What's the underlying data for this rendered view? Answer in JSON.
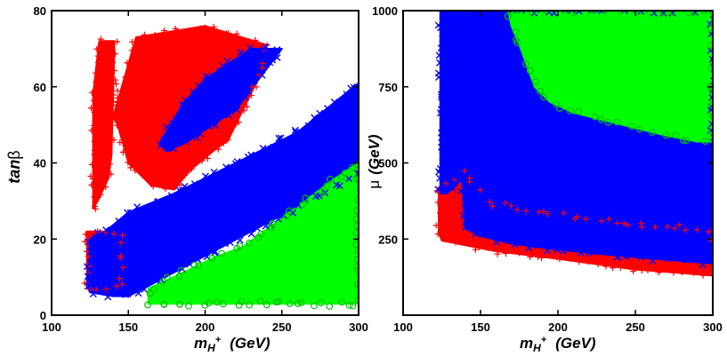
{
  "chart_data": [
    {
      "type": "scatter",
      "panel": "left",
      "xlabel_main": "m",
      "xlabel_sub": "H",
      "xlabel_sup": "+",
      "xlabel_units": "(GeV)",
      "ylabel_main": "tan",
      "ylabel_greek": "β",
      "xlim": [
        100,
        300
      ],
      "ylim": [
        0,
        80
      ],
      "xticks": [
        100,
        150,
        200,
        250,
        300
      ],
      "yticks": [
        0,
        20,
        40,
        60,
        80
      ],
      "series": [
        {
          "name": "red-plus",
          "marker": "+",
          "color": "#ff0000",
          "regions": [
            [
              [
                127,
                28
              ],
              [
                127,
                58
              ],
              [
                131,
                72
              ],
              [
                141,
                72
              ],
              [
                139,
                42
              ],
              [
                137,
                36
              ],
              [
                130,
                30
              ]
            ],
            [
              [
                140,
                52
              ],
              [
                155,
                73
              ],
              [
                200,
                76
              ],
              [
                240,
                71
              ],
              [
                232,
                60
              ],
              [
                215,
                46
              ],
              [
                205,
                43
              ],
              [
                190,
                38
              ],
              [
                180,
                33
              ],
              [
                165,
                34
              ],
              [
                150,
                40
              ],
              [
                143,
                50
              ]
            ],
            [
              [
                123,
                22
              ],
              [
                145,
                22
              ],
              [
                145,
                7
              ],
              [
                123,
                7
              ]
            ]
          ]
        },
        {
          "name": "blue-x",
          "marker": "x",
          "color": "#0000ff",
          "regions": [
            [
              [
                123,
                8
              ],
              [
                125,
                20
              ],
              [
                135,
                22
              ],
              [
                150,
                27
              ],
              [
                180,
                32
              ],
              [
                220,
                40
              ],
              [
                260,
                48
              ],
              [
                300,
                61
              ],
              [
                300,
                37
              ],
              [
                160,
                7
              ],
              [
                150,
                5
              ],
              [
                140,
                5
              ],
              [
                125,
                6
              ]
            ],
            [
              [
                170,
                45
              ],
              [
                185,
                55
              ],
              [
                200,
                62
              ],
              [
                215,
                66
              ],
              [
                230,
                70
              ],
              [
                250,
                70
              ],
              [
                235,
                62
              ],
              [
                220,
                54
              ],
              [
                205,
                50
              ],
              [
                190,
                46
              ],
              [
                175,
                43
              ]
            ]
          ]
        },
        {
          "name": "green-o",
          "marker": "o",
          "color": "#00ff00",
          "regions": [
            [
              [
                163,
                7
              ],
              [
                185,
                11
              ],
              [
                205,
                15
              ],
              [
                225,
                18
              ],
              [
                245,
                24
              ],
              [
                265,
                30
              ],
              [
                285,
                36
              ],
              [
                300,
                40
              ],
              [
                300,
                3
              ],
              [
                163,
                3
              ]
            ]
          ]
        }
      ]
    },
    {
      "type": "scatter",
      "panel": "right",
      "xlabel_main": "m",
      "xlabel_sub": "H",
      "xlabel_sup": "+",
      "xlabel_units": "(GeV)",
      "ylabel_main": "μ",
      "ylabel_units": "(GeV)",
      "xlim": [
        100,
        300
      ],
      "ylim": [
        0,
        1000
      ],
      "xticks": [
        100,
        150,
        200,
        250,
        300
      ],
      "yticks": [
        250,
        500,
        750,
        1000
      ],
      "series": [
        {
          "name": "red-plus",
          "marker": "+",
          "color": "#ff0000",
          "regions": [
            [
              [
                123,
                270
              ],
              [
                123,
                420
              ],
              [
                130,
                430
              ],
              [
                136,
                440
              ],
              [
                140,
                480
              ],
              [
                148,
                420
              ],
              [
                155,
                370
              ],
              [
                200,
                330
              ],
              [
                250,
                300
              ],
              [
                300,
                280
              ],
              [
                300,
                130
              ],
              [
                250,
                150
              ],
              [
                200,
                185
              ],
              [
                160,
                210
              ],
              [
                140,
                230
              ],
              [
                125,
                245
              ]
            ]
          ]
        },
        {
          "name": "blue-x",
          "marker": "x",
          "color": "#0000ff",
          "regions": [
            [
              [
                124,
                1000
              ],
              [
                300,
                1000
              ],
              [
                300,
                170
              ],
              [
                250,
                190
              ],
              [
                200,
                215
              ],
              [
                170,
                235
              ],
              [
                150,
                260
              ],
              [
                140,
                285
              ],
              [
                138,
                450
              ],
              [
                133,
                420
              ],
              [
                128,
                400
              ],
              [
                124,
                400
              ]
            ]
          ]
        },
        {
          "name": "green-o",
          "marker": "o",
          "color": "#00ff00",
          "regions": [
            [
              [
                168,
                1000
              ],
              [
                300,
                1000
              ],
              [
                300,
                570
              ],
              [
                290,
                570
              ],
              [
                270,
                590
              ],
              [
                250,
                615
              ],
              [
                230,
                640
              ],
              [
                210,
                665
              ],
              [
                195,
                700
              ],
              [
                185,
                750
              ],
              [
                180,
                820
              ],
              [
                175,
                890
              ],
              [
                170,
                950
              ]
            ]
          ]
        }
      ]
    }
  ]
}
